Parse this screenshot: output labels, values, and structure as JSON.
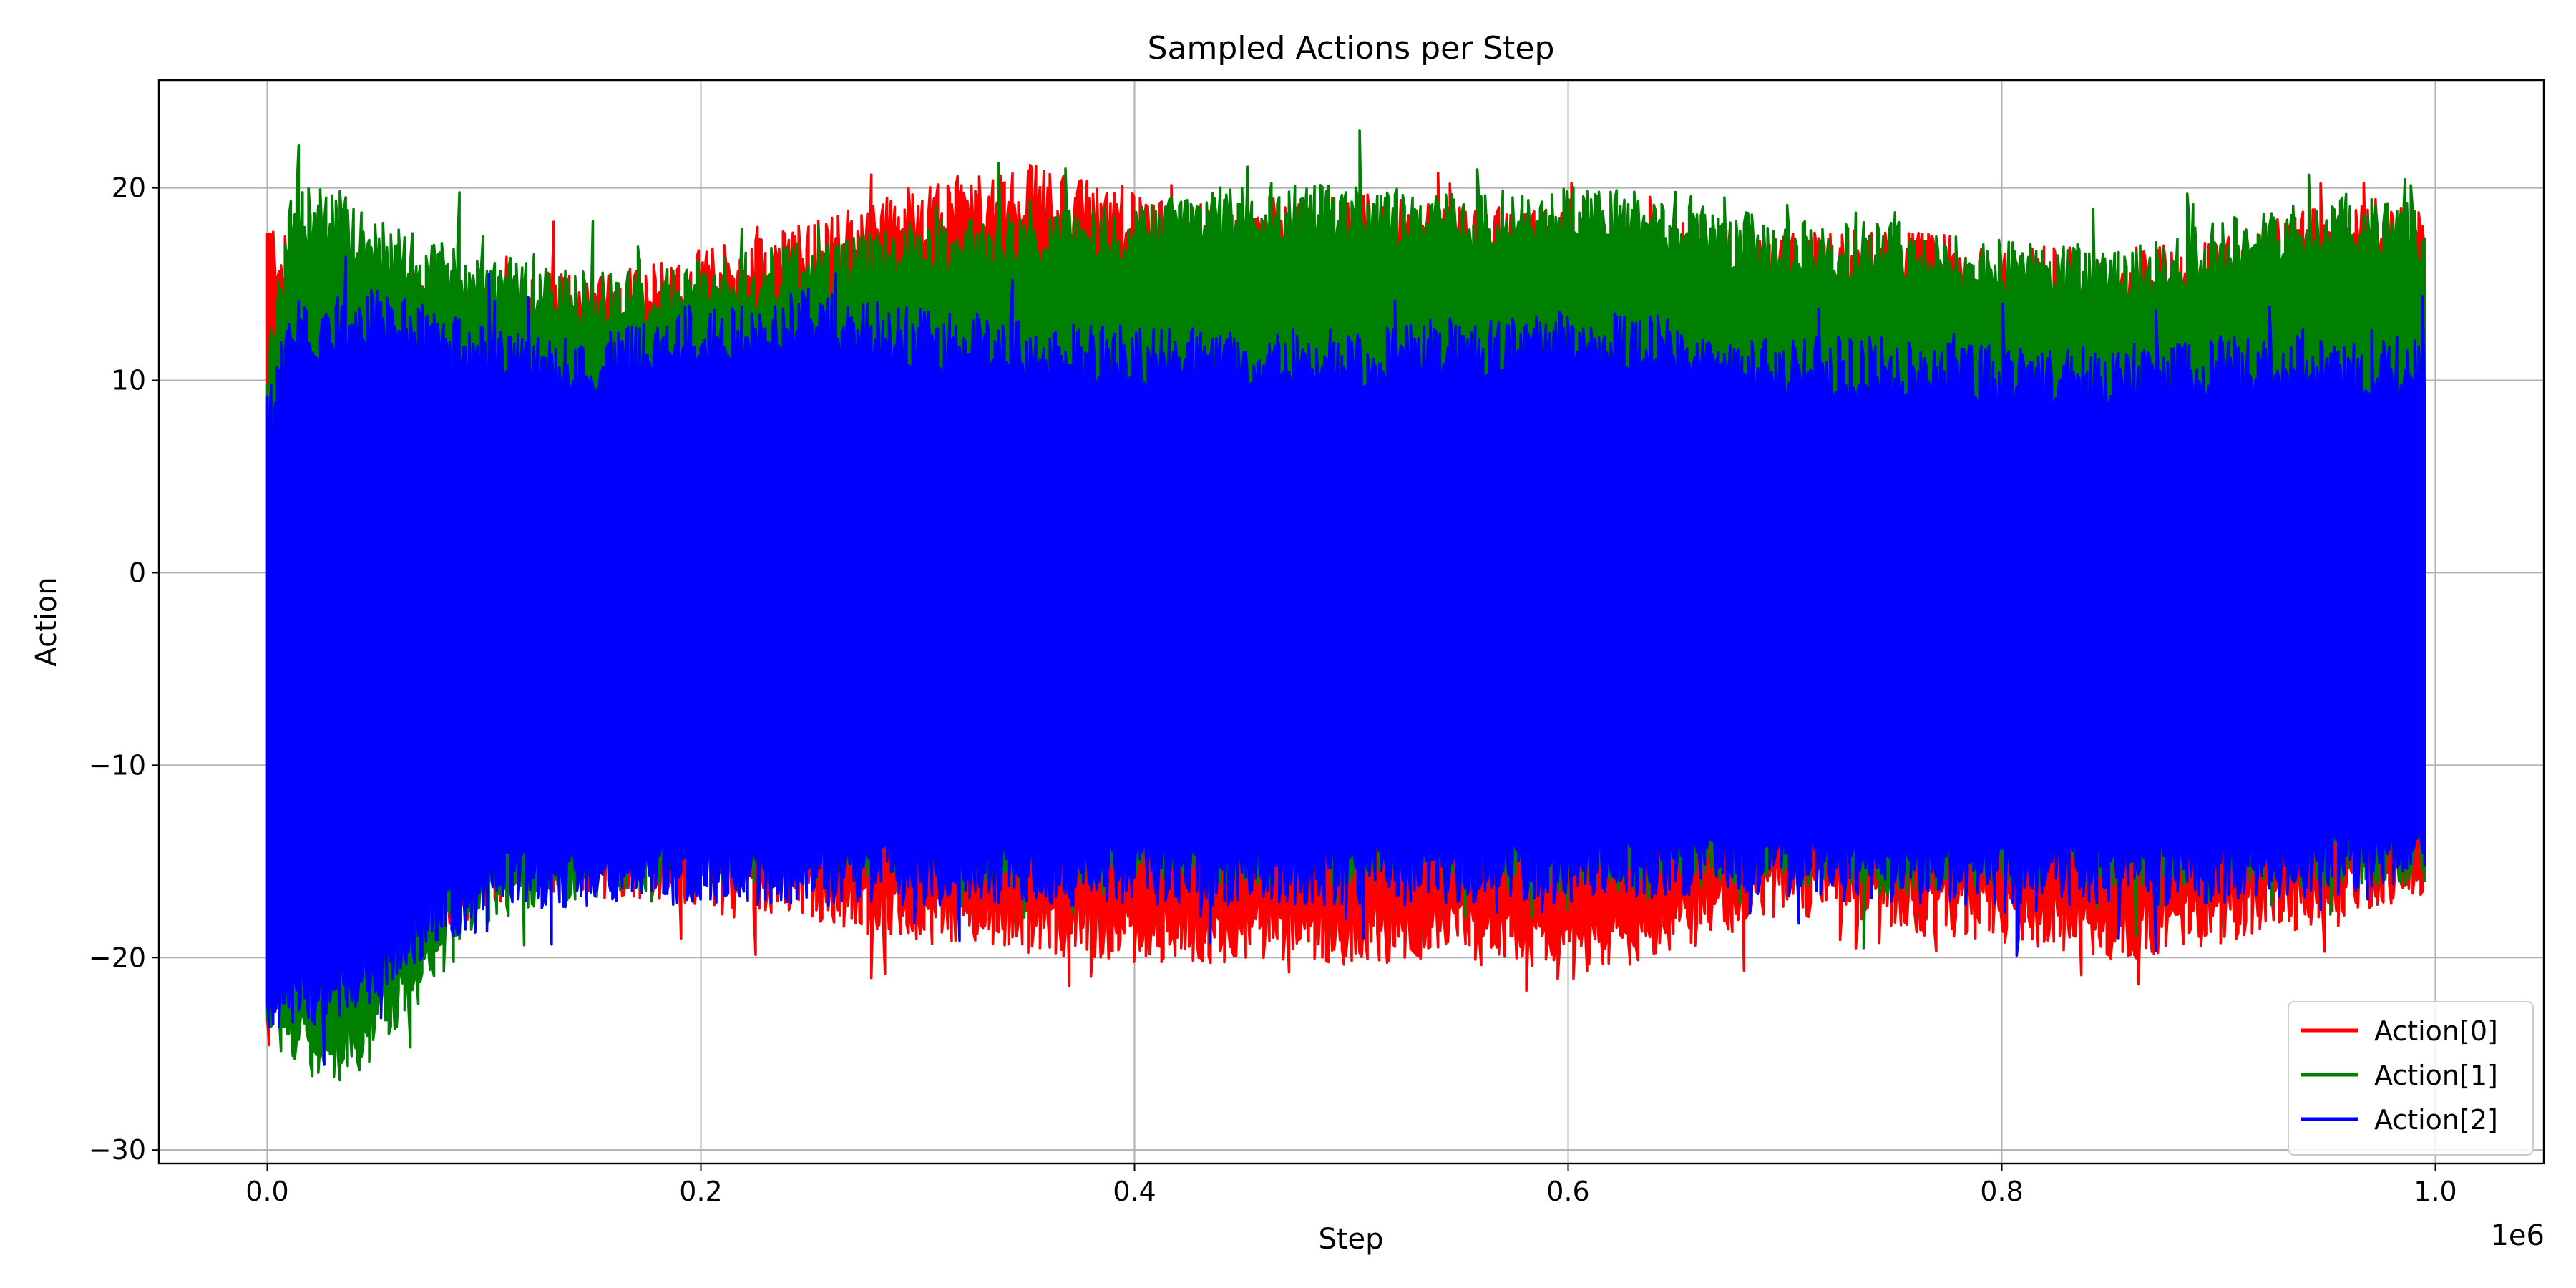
{
  "chart_data": {
    "type": "line",
    "title": "Sampled Actions per Step",
    "xlabel": "Step",
    "ylabel": "Action",
    "x_offset_label": "1e6",
    "xlim": [
      -50000,
      1050000
    ],
    "ylim": [
      -30.7,
      25.6
    ],
    "x_ticks": [
      0,
      200000,
      400000,
      600000,
      800000,
      1000000
    ],
    "x_tick_labels": [
      "0.0",
      "0.2",
      "0.4",
      "0.6",
      "0.8",
      "1.0"
    ],
    "y_ticks": [
      -30,
      -20,
      -10,
      0,
      10,
      20
    ],
    "y_tick_labels": [
      "−30",
      "−20",
      "−10",
      "0",
      "10",
      "20"
    ],
    "grid": true,
    "legend_position": "lower-right",
    "x_end": 995000,
    "series": [
      {
        "name": "Action[0]",
        "color": "#ff0000",
        "x": [
          0,
          10000,
          30000,
          50000,
          100000,
          150000,
          200000,
          250000,
          300000,
          350000,
          400000,
          450000,
          500000,
          550000,
          600000,
          650000,
          700000,
          750000,
          800000,
          850000,
          900000,
          950000,
          995000
        ],
        "upper": [
          17.5,
          16,
          15,
          14.5,
          14,
          14.5,
          15.5,
          17,
          19,
          20,
          18.5,
          17.5,
          18.5,
          18,
          17.5,
          17,
          16.5,
          16.5,
          16,
          15.5,
          16,
          18,
          18
        ],
        "lower": [
          -24,
          -22,
          -22,
          -21,
          -16,
          -15.5,
          -16,
          -17,
          -18,
          -18.5,
          -19,
          -19,
          -19,
          -19,
          -20,
          -18.5,
          -16.5,
          -17.5,
          -18,
          -19,
          -18,
          -17,
          -15.5
        ]
      },
      {
        "name": "Action[1]",
        "color": "#008000",
        "x": [
          0,
          10000,
          30000,
          50000,
          100000,
          150000,
          200000,
          250000,
          300000,
          350000,
          400000,
          450000,
          500000,
          550000,
          600000,
          650000,
          700000,
          750000,
          800000,
          850000,
          900000,
          950000,
          995000
        ],
        "upper": [
          10,
          18.5,
          19,
          17,
          15.5,
          14.5,
          15,
          16,
          17,
          17.5,
          18,
          19,
          19,
          18.5,
          19,
          18.5,
          17,
          17,
          16,
          15.5,
          17,
          18.5,
          18
        ],
        "lower": [
          -24,
          -24,
          -26,
          -24,
          -17,
          -15.5,
          -15,
          -15,
          -15,
          -15,
          -15,
          -15,
          -15,
          -15,
          -15.5,
          -15,
          -15,
          -15.5,
          -15,
          -15,
          -15,
          -15,
          -15
        ]
      },
      {
        "name": "Action[2]",
        "color": "#0000ff",
        "x": [
          0,
          10000,
          30000,
          50000,
          100000,
          150000,
          200000,
          250000,
          300000,
          350000,
          400000,
          450000,
          500000,
          550000,
          600000,
          650000,
          700000,
          750000,
          800000,
          850000,
          900000,
          950000,
          995000
        ],
        "upper": [
          8,
          12.5,
          13,
          13.5,
          11.5,
          11,
          12.5,
          13.5,
          12.5,
          12,
          11.5,
          11.5,
          11.5,
          12,
          12.5,
          12,
          11,
          11,
          10.5,
          10.5,
          11,
          11,
          11
        ],
        "lower": [
          -23,
          -22.5,
          -22,
          -21,
          -16.5,
          -16,
          -16,
          -16,
          -16,
          -16,
          -16,
          -16,
          -16,
          -16,
          -16,
          -15.5,
          -15.5,
          -16,
          -16,
          -16,
          -16,
          -15.5,
          -15
        ]
      }
    ]
  }
}
